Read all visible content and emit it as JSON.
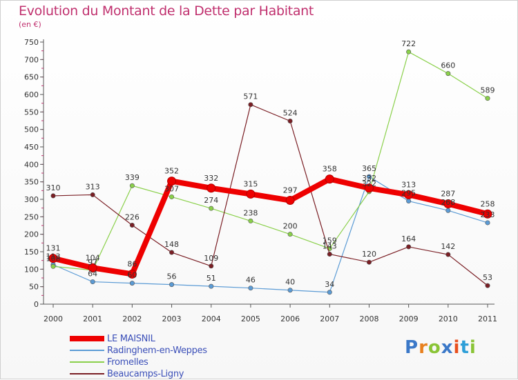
{
  "title": "Evolution du Montant de la Dette par Habitant",
  "subtitle": "(en €)",
  "logo": {
    "text": "Proxiti",
    "colors": [
      "#3b78c8",
      "#e8801e",
      "#8ac436",
      "#3b78c8",
      "#e8501e",
      "#2e9fd8",
      "#8ac436"
    ]
  },
  "chart_data": {
    "type": "line",
    "x": [
      "2000",
      "2001",
      "2002",
      "2003",
      "2004",
      "2005",
      "2006",
      "2007",
      "2008",
      "2009",
      "2010",
      "2011"
    ],
    "ylim": [
      0,
      750
    ],
    "yticks": [
      0,
      50,
      100,
      150,
      200,
      250,
      300,
      350,
      400,
      450,
      500,
      550,
      600,
      650,
      700,
      750
    ],
    "grid": false,
    "legend_position": "bottom-left",
    "series": [
      {
        "name": "LE MAISNIL",
        "color": "#ee0000",
        "width": 8,
        "values": [
          131,
          104,
          86,
          352,
          332,
          315,
          297,
          358,
          332,
          313,
          287,
          258
        ]
      },
      {
        "name": "Radinghem-en-Weppes",
        "color": "#5b9bd5",
        "width": 1.2,
        "values": [
          113,
          64,
          60,
          56,
          51,
          46,
          40,
          34,
          365,
          295,
          268,
          233
        ]
      },
      {
        "name": "Fromelles",
        "color": "#8ad04a",
        "width": 1.2,
        "values": [
          108,
          97,
          339,
          307,
          274,
          238,
          200,
          159,
          322,
          722,
          660,
          589
        ]
      },
      {
        "name": "Beaucamps-Ligny",
        "color": "#7a1e24",
        "width": 1.2,
        "values": [
          310,
          313,
          226,
          148,
          109,
          571,
          524,
          143,
          120,
          164,
          142,
          53
        ]
      }
    ]
  }
}
